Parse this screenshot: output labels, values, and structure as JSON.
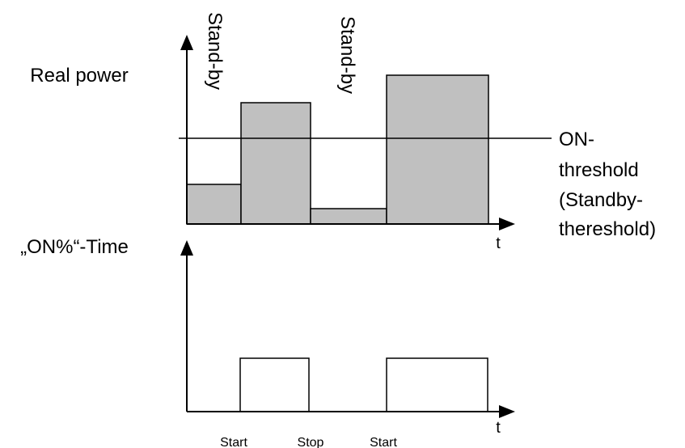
{
  "upper_plot": {
    "y_label": "Real power",
    "x_label": "t",
    "threshold_label_lines": [
      "ON-",
      "threshold",
      "(Standby-",
      "thereshold)"
    ],
    "standby_labels": [
      "Stand-by",
      "Stand-by"
    ],
    "bar_fill": "#c0c0c0"
  },
  "lower_plot": {
    "y_label": "„ON%“-Time",
    "x_label": "t",
    "event_labels": [
      "Start",
      "Stop",
      "Start"
    ]
  },
  "colors": {
    "line": "#000000",
    "background": "#ffffff"
  }
}
